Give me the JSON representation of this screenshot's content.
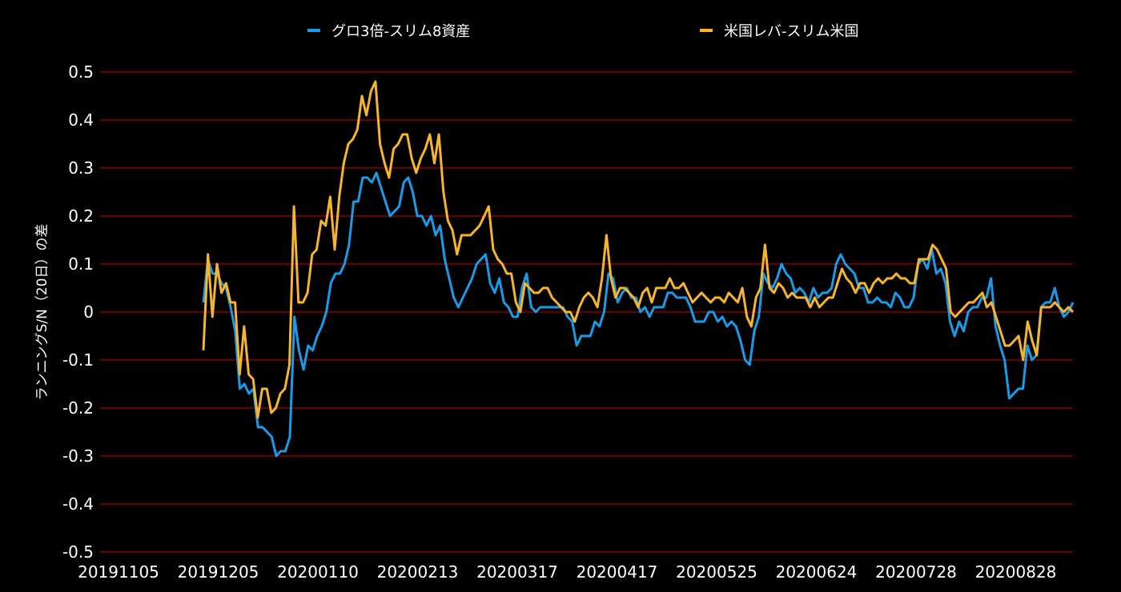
{
  "chart_data": {
    "type": "line",
    "title": "",
    "xlabel": "",
    "ylabel": "ランニングS/N（20日）の差",
    "ylim": [
      -0.5,
      0.5
    ],
    "yticks": [
      0.5,
      0.4,
      0.3,
      0.2,
      0.1,
      0,
      -0.1,
      -0.2,
      -0.3,
      -0.4,
      -0.5
    ],
    "ytick_labels": [
      "0.5",
      "0.4",
      "0.3",
      "0.2",
      "0.1",
      "0",
      "-0.1",
      "-0.2",
      "-0.3",
      "-0.4",
      "-0.5"
    ],
    "xtick_labels": [
      "20191105",
      "20191205",
      "20200110",
      "20200213",
      "20200317",
      "20200417",
      "20200525",
      "20200624",
      "20200728",
      "20200828"
    ],
    "grid": true,
    "grid_color": "#8b0000",
    "legend_position": "top-center",
    "series": [
      {
        "name": "グロ3倍-スリム8資産",
        "color": "#1a9be8",
        "values": [
          0.02,
          0.11,
          0.08,
          0.08,
          0.06,
          0.05,
          0.01,
          -0.04,
          -0.16,
          -0.15,
          -0.17,
          -0.16,
          -0.24,
          -0.24,
          -0.25,
          -0.26,
          -0.3,
          -0.29,
          -0.29,
          -0.26,
          -0.01,
          -0.08,
          -0.12,
          -0.07,
          -0.08,
          -0.05,
          -0.03,
          0.0,
          0.06,
          0.08,
          0.08,
          0.1,
          0.14,
          0.23,
          0.23,
          0.28,
          0.28,
          0.27,
          0.29,
          0.26,
          0.23,
          0.2,
          0.21,
          0.22,
          0.27,
          0.28,
          0.25,
          0.2,
          0.2,
          0.18,
          0.2,
          0.16,
          0.18,
          0.11,
          0.07,
          0.03,
          0.01,
          0.03,
          0.05,
          0.07,
          0.1,
          0.11,
          0.12,
          0.06,
          0.04,
          0.07,
          0.02,
          0.01,
          -0.01,
          -0.01,
          0.05,
          0.08,
          0.01,
          0.0,
          0.01,
          0.01,
          0.01,
          0.01,
          0.01,
          0.01,
          -0.01,
          -0.02,
          -0.07,
          -0.05,
          -0.05,
          -0.05,
          -0.02,
          -0.03,
          0.0,
          0.08,
          0.07,
          0.02,
          0.04,
          0.05,
          0.03,
          0.03,
          0.0,
          0.01,
          -0.01,
          0.01,
          0.01,
          0.01,
          0.04,
          0.04,
          0.03,
          0.03,
          0.03,
          0.01,
          -0.02,
          -0.02,
          -0.02,
          0.0,
          0.0,
          -0.02,
          -0.01,
          -0.03,
          -0.02,
          -0.03,
          -0.06,
          -0.1,
          -0.11,
          -0.04,
          -0.01,
          0.08,
          0.06,
          0.05,
          0.07,
          0.1,
          0.08,
          0.07,
          0.04,
          0.05,
          0.04,
          0.02,
          0.05,
          0.03,
          0.04,
          0.04,
          0.05,
          0.1,
          0.12,
          0.1,
          0.09,
          0.08,
          0.05,
          0.05,
          0.02,
          0.02,
          0.03,
          0.02,
          0.02,
          0.01,
          0.04,
          0.03,
          0.01,
          0.01,
          0.03,
          0.1,
          0.11,
          0.09,
          0.13,
          0.08,
          0.09,
          0.06,
          -0.02,
          -0.05,
          -0.02,
          -0.04,
          0.0,
          0.01,
          0.01,
          0.03,
          0.03,
          0.07,
          -0.03,
          -0.07,
          -0.1,
          -0.18,
          -0.17,
          -0.16,
          -0.16,
          -0.07,
          -0.1,
          -0.09,
          0.01,
          0.02,
          0.02,
          0.05,
          0.01,
          -0.01,
          0.0,
          0.02
        ]
      },
      {
        "name": "米国レバ-スリム米国",
        "color": "#f5b52e",
        "values": [
          -0.08,
          0.12,
          -0.01,
          0.1,
          0.04,
          0.06,
          0.02,
          0.02,
          -0.13,
          -0.03,
          -0.13,
          -0.14,
          -0.22,
          -0.16,
          -0.16,
          -0.21,
          -0.2,
          -0.17,
          -0.16,
          -0.11,
          0.22,
          0.02,
          0.02,
          0.04,
          0.12,
          0.13,
          0.19,
          0.18,
          0.24,
          0.13,
          0.24,
          0.31,
          0.35,
          0.36,
          0.38,
          0.45,
          0.41,
          0.46,
          0.48,
          0.35,
          0.31,
          0.28,
          0.34,
          0.35,
          0.37,
          0.37,
          0.32,
          0.29,
          0.32,
          0.34,
          0.37,
          0.31,
          0.37,
          0.25,
          0.19,
          0.17,
          0.12,
          0.16,
          0.16,
          0.16,
          0.17,
          0.18,
          0.2,
          0.22,
          0.13,
          0.11,
          0.1,
          0.08,
          0.08,
          0.02,
          0.0,
          0.06,
          0.05,
          0.04,
          0.04,
          0.05,
          0.05,
          0.03,
          0.02,
          0.01,
          0.0,
          0.0,
          -0.02,
          0.01,
          0.03,
          0.04,
          0.03,
          0.01,
          0.07,
          0.16,
          0.07,
          0.03,
          0.05,
          0.05,
          0.04,
          0.03,
          0.01,
          0.04,
          0.05,
          0.02,
          0.05,
          0.05,
          0.05,
          0.07,
          0.05,
          0.05,
          0.06,
          0.04,
          0.02,
          0.03,
          0.04,
          0.03,
          0.02,
          0.03,
          0.03,
          0.02,
          0.04,
          0.03,
          0.02,
          0.05,
          -0.01,
          -0.03,
          0.03,
          0.05,
          0.14,
          0.05,
          0.04,
          0.06,
          0.05,
          0.03,
          0.04,
          0.03,
          0.03,
          0.03,
          0.01,
          0.03,
          0.01,
          0.02,
          0.03,
          0.03,
          0.06,
          0.09,
          0.07,
          0.06,
          0.04,
          0.06,
          0.06,
          0.04,
          0.06,
          0.07,
          0.06,
          0.07,
          0.07,
          0.08,
          0.07,
          0.07,
          0.06,
          0.06,
          0.11,
          0.11,
          0.11,
          0.14,
          0.13,
          0.11,
          0.09,
          0.0,
          -0.01,
          0.0,
          0.01,
          0.02,
          0.02,
          0.03,
          0.04,
          0.01,
          0.02,
          -0.01,
          -0.04,
          -0.07,
          -0.07,
          -0.06,
          -0.05,
          -0.1,
          -0.02,
          -0.06,
          -0.09,
          0.01,
          0.01,
          0.01,
          0.02,
          0.01,
          0.0,
          0.01,
          0.0
        ]
      }
    ]
  }
}
